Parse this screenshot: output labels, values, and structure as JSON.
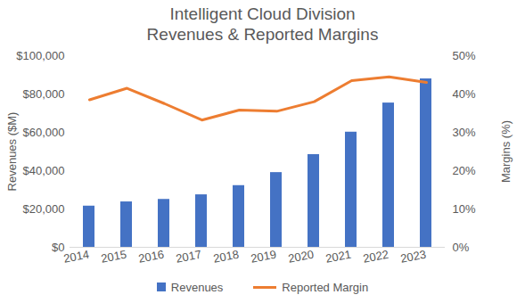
{
  "chart_data": {
    "type": "bar",
    "title": "Intelligent Cloud Division",
    "subtitle": "Revenues & Reported Margins",
    "categories": [
      "2014",
      "2015",
      "2016",
      "2017",
      "2018",
      "2019",
      "2020",
      "2021",
      "2022",
      "2023"
    ],
    "series": [
      {
        "name": "Revenues",
        "type": "bar",
        "color": "#4472c4",
        "values": [
          21500,
          23700,
          25000,
          27400,
          32200,
          39000,
          48400,
          60100,
          75300,
          87900
        ]
      },
      {
        "name": "Reported Margin",
        "type": "line",
        "color": "#ed7d31",
        "axis": "y2",
        "values": [
          38.5,
          41.5,
          37.5,
          33.2,
          35.8,
          35.5,
          38,
          43.5,
          44.5,
          43
        ]
      }
    ],
    "ylabel": "Revenues ($M)",
    "y2label": "Margins (%)",
    "ylim": [
      0,
      100000
    ],
    "yticks": [
      {
        "value": 0,
        "label": "$0"
      },
      {
        "value": 20000,
        "label": "$20,000"
      },
      {
        "value": 40000,
        "label": "$40,000"
      },
      {
        "value": 60000,
        "label": "$60,000"
      },
      {
        "value": 80000,
        "label": "$80,000"
      },
      {
        "value": 100000,
        "label": "$100,000"
      }
    ],
    "y2lim": [
      0,
      50
    ],
    "y2ticks": [
      {
        "value": 0,
        "label": "0%"
      },
      {
        "value": 10,
        "label": "10%"
      },
      {
        "value": 20,
        "label": "20%"
      },
      {
        "value": 30,
        "label": "30%"
      },
      {
        "value": 40,
        "label": "40%"
      },
      {
        "value": 50,
        "label": "50%"
      }
    ],
    "grid": false,
    "legend": "bottom"
  }
}
